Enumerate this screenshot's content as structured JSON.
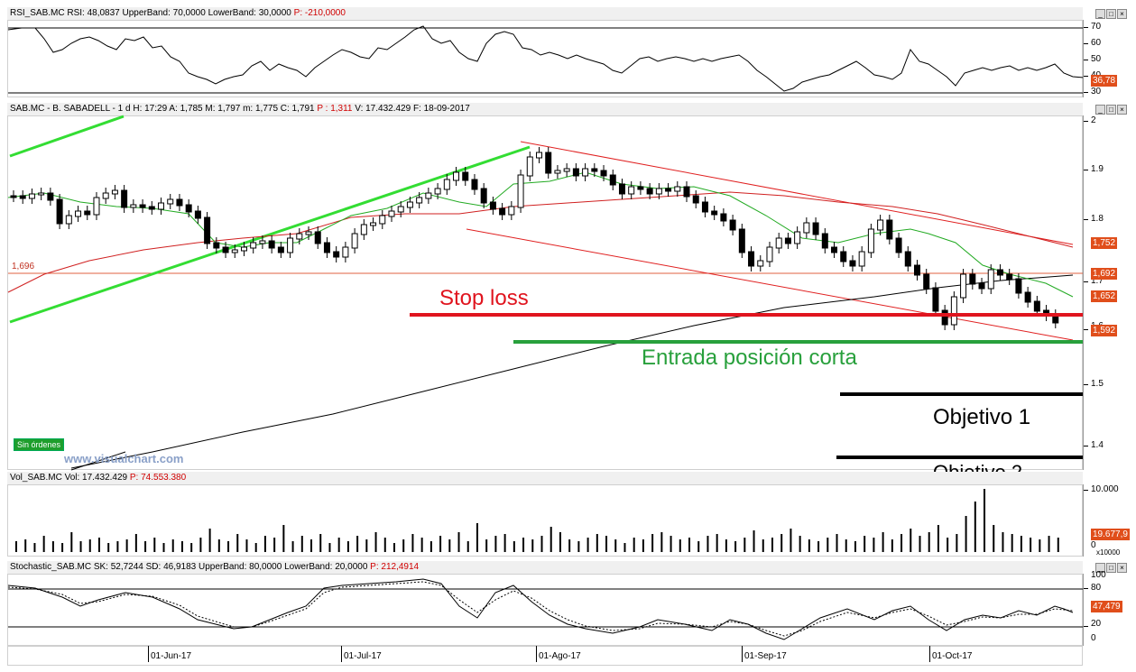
{
  "rsi_panel": {
    "header": "RSI_SAB.MC RSI: 48,0837 UpperBand: 70,0000 LowerBand: 30,0000",
    "header_p": "P: -210,0000",
    "axis_labels": [
      "70",
      "60",
      "50",
      "40",
      "30"
    ],
    "value_tag": "36,78"
  },
  "price_panel": {
    "header": "SAB.MC - B. SABADELL - 1 d H: 17:29 A: 1,785 M: 1,797 m: 1,775 C: 1,791",
    "header_p": "P : 1,311",
    "header_tail": "V: 17.432.429 F: 18-09-2017",
    "axis_labels": [
      "2",
      "1.9",
      "1.8",
      "1.7",
      "1.6",
      "1.5",
      "1.4"
    ],
    "hline_label": "1,696",
    "tags": [
      "1,752",
      "1,692",
      "1,652",
      "1,592"
    ],
    "annotations": {
      "stop_loss": "Stop loss",
      "entrada": "Entrada posición corta",
      "objetivo1": "Objetivo 1",
      "objetivo2": "Objetivo 2"
    },
    "badge": "Sin órdenes",
    "watermark": "www.visualchart.com"
  },
  "vol_panel": {
    "header": "Vol_SAB.MC Vol: 17.432.429",
    "header_p": "P: 74.553.380",
    "axis_top": "10.000",
    "value_tag": "19.677,9",
    "axis_bottom": "0",
    "axis_unit": "x10000"
  },
  "sto_panel": {
    "header": "Stochastic_SAB.MC SK: 52,7244 SD: 46,9183 UpperBand: 80,0000 LowerBand: 20,0000",
    "header_p": "P: 212,4914",
    "axis_labels": [
      "100",
      "80",
      "20",
      "0"
    ],
    "value_tag": "47,479"
  },
  "x_axis": [
    "01-Jun-17",
    "01-Jul-17",
    "01-Ago-17",
    "01-Sep-17",
    "01-Oct-17"
  ],
  "window_buttons": [
    "_",
    "□",
    "×"
  ],
  "colors": {
    "stop_loss": "#e0141e",
    "entrada": "#28a03c",
    "objetivo": "#000000",
    "channel": "#e02020",
    "uptrend": "#33dd33",
    "ma_short": "#22aa22",
    "ma_mid": "#d02020",
    "ma_long": "#000000",
    "tag_bg": "#e04e1b"
  }
}
